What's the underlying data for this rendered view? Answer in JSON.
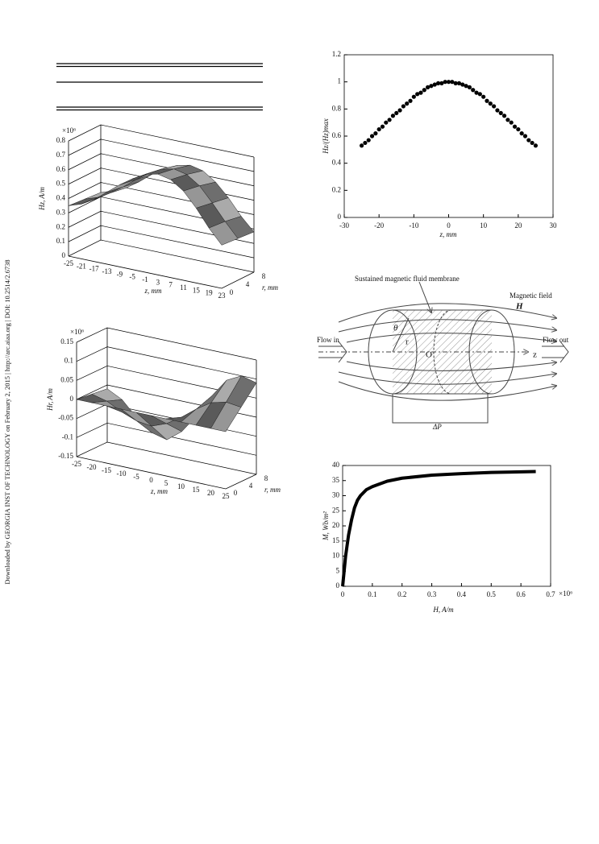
{
  "side_note": "Downloaded by GEORGIA INST OF TECHNOLOGY on February 2, 2015 | http://arc.aiaa.org | DOI: 10.2514/2.6738",
  "diagram": {
    "membrane_label": "Sustained magnetic fluid membrane",
    "field_label": "Magnetic field",
    "field_symbol": "H",
    "flow_in": "Flow in",
    "flow_out": "Flow out",
    "theta": "θ",
    "r": "r",
    "origin": "O",
    "z": "z",
    "pressure": "ΔP"
  },
  "chart_data": [
    {
      "type": "surface",
      "y_label": "Hz, A/m",
      "x_label": "z, mm",
      "depth_label": "r, mm",
      "multiplier": "×10⁶",
      "x": [
        -25,
        -21,
        -17,
        -13,
        -9,
        -5,
        -1,
        3,
        7,
        11,
        15,
        19,
        23
      ],
      "depth": [
        0,
        4,
        8
      ],
      "surface_values": [
        [
          0.35,
          0.38,
          0.43,
          0.5,
          0.57,
          0.63,
          0.68,
          0.7,
          0.68,
          0.62,
          0.52,
          0.4,
          0.3
        ],
        [
          0.34,
          0.37,
          0.42,
          0.48,
          0.55,
          0.61,
          0.66,
          0.68,
          0.66,
          0.6,
          0.5,
          0.39,
          0.29
        ],
        [
          0.33,
          0.36,
          0.4,
          0.46,
          0.53,
          0.58,
          0.63,
          0.65,
          0.63,
          0.57,
          0.48,
          0.37,
          0.28
        ]
      ],
      "ylim": [
        0,
        0.8
      ],
      "yticks": [
        0,
        0.1,
        0.2,
        0.3,
        0.4,
        0.5,
        0.6,
        0.7,
        0.8
      ]
    },
    {
      "type": "surface",
      "y_label": "Hr, A/m",
      "x_label": "z, mm",
      "depth_label": "r, mm",
      "multiplier": "×10⁶",
      "x": [
        -25,
        -20,
        -15,
        -10,
        -5,
        0,
        5,
        10,
        15,
        20,
        25
      ],
      "depth": [
        0,
        4,
        8
      ],
      "surface_values": [
        [
          0,
          0,
          0,
          0,
          0,
          0,
          0,
          0,
          0,
          0,
          0
        ],
        [
          -0.005,
          -0.015,
          -0.035,
          -0.05,
          -0.055,
          -0.04,
          -0.015,
          0.015,
          0.04,
          0.05,
          0.045
        ],
        [
          -0.01,
          -0.03,
          -0.07,
          -0.1,
          -0.11,
          -0.08,
          -0.03,
          0.03,
          0.08,
          0.1,
          0.09
        ]
      ],
      "ylim": [
        -0.15,
        0.15
      ],
      "yticks": [
        -0.15,
        -0.1,
        -0.05,
        0,
        0.05,
        0.1,
        0.15
      ]
    },
    {
      "type": "scatter",
      "y_label": "Hz/(Hz)max",
      "x_label": "z, mm",
      "x": [
        -25,
        -24,
        -23,
        -22,
        -21,
        -20,
        -19,
        -18,
        -17,
        -16,
        -15,
        -14,
        -13,
        -12,
        -11,
        -10,
        -9,
        -8,
        -7,
        -6,
        -5,
        -4,
        -3,
        -2,
        -1,
        0,
        1,
        2,
        3,
        4,
        5,
        6,
        7,
        8,
        9,
        10,
        11,
        12,
        13,
        14,
        15,
        16,
        17,
        18,
        19,
        20,
        21,
        22,
        23,
        24,
        25
      ],
      "values": [
        0.53,
        0.55,
        0.57,
        0.6,
        0.62,
        0.65,
        0.67,
        0.7,
        0.72,
        0.75,
        0.77,
        0.79,
        0.82,
        0.84,
        0.86,
        0.89,
        0.91,
        0.92,
        0.94,
        0.96,
        0.97,
        0.98,
        0.99,
        0.99,
        1.0,
        1.0,
        1.0,
        0.99,
        0.99,
        0.98,
        0.97,
        0.96,
        0.94,
        0.92,
        0.91,
        0.89,
        0.86,
        0.84,
        0.82,
        0.79,
        0.77,
        0.75,
        0.72,
        0.7,
        0.67,
        0.65,
        0.62,
        0.6,
        0.57,
        0.55,
        0.53
      ],
      "xlim": [
        -30,
        30
      ],
      "xticks": [
        -30,
        -20,
        -10,
        0,
        10,
        20,
        30
      ],
      "ylim": [
        0,
        1.2
      ],
      "yticks": [
        0,
        0.2,
        0.4,
        0.6,
        0.8,
        1,
        1.2
      ],
      "color": "#000000"
    },
    {
      "type": "line",
      "y_label": "M, Wb/m²",
      "x_label": "H, A/m",
      "multiplier": "×10⁶",
      "x": [
        0,
        0.005,
        0.01,
        0.02,
        0.03,
        0.04,
        0.05,
        0.06,
        0.08,
        0.1,
        0.15,
        0.2,
        0.3,
        0.4,
        0.5,
        0.65
      ],
      "values": [
        0,
        5,
        10,
        17,
        22,
        26,
        28.5,
        30,
        32,
        33,
        34.8,
        35.8,
        36.8,
        37.3,
        37.7,
        38
      ],
      "xlim": [
        0,
        0.7
      ],
      "xticks": [
        0,
        0.1,
        0.2,
        0.3,
        0.4,
        0.5,
        0.6,
        0.7
      ],
      "ylim": [
        0,
        40
      ],
      "yticks": [
        0,
        5,
        10,
        15,
        20,
        25,
        30,
        35,
        40
      ],
      "color": "#000000"
    }
  ]
}
